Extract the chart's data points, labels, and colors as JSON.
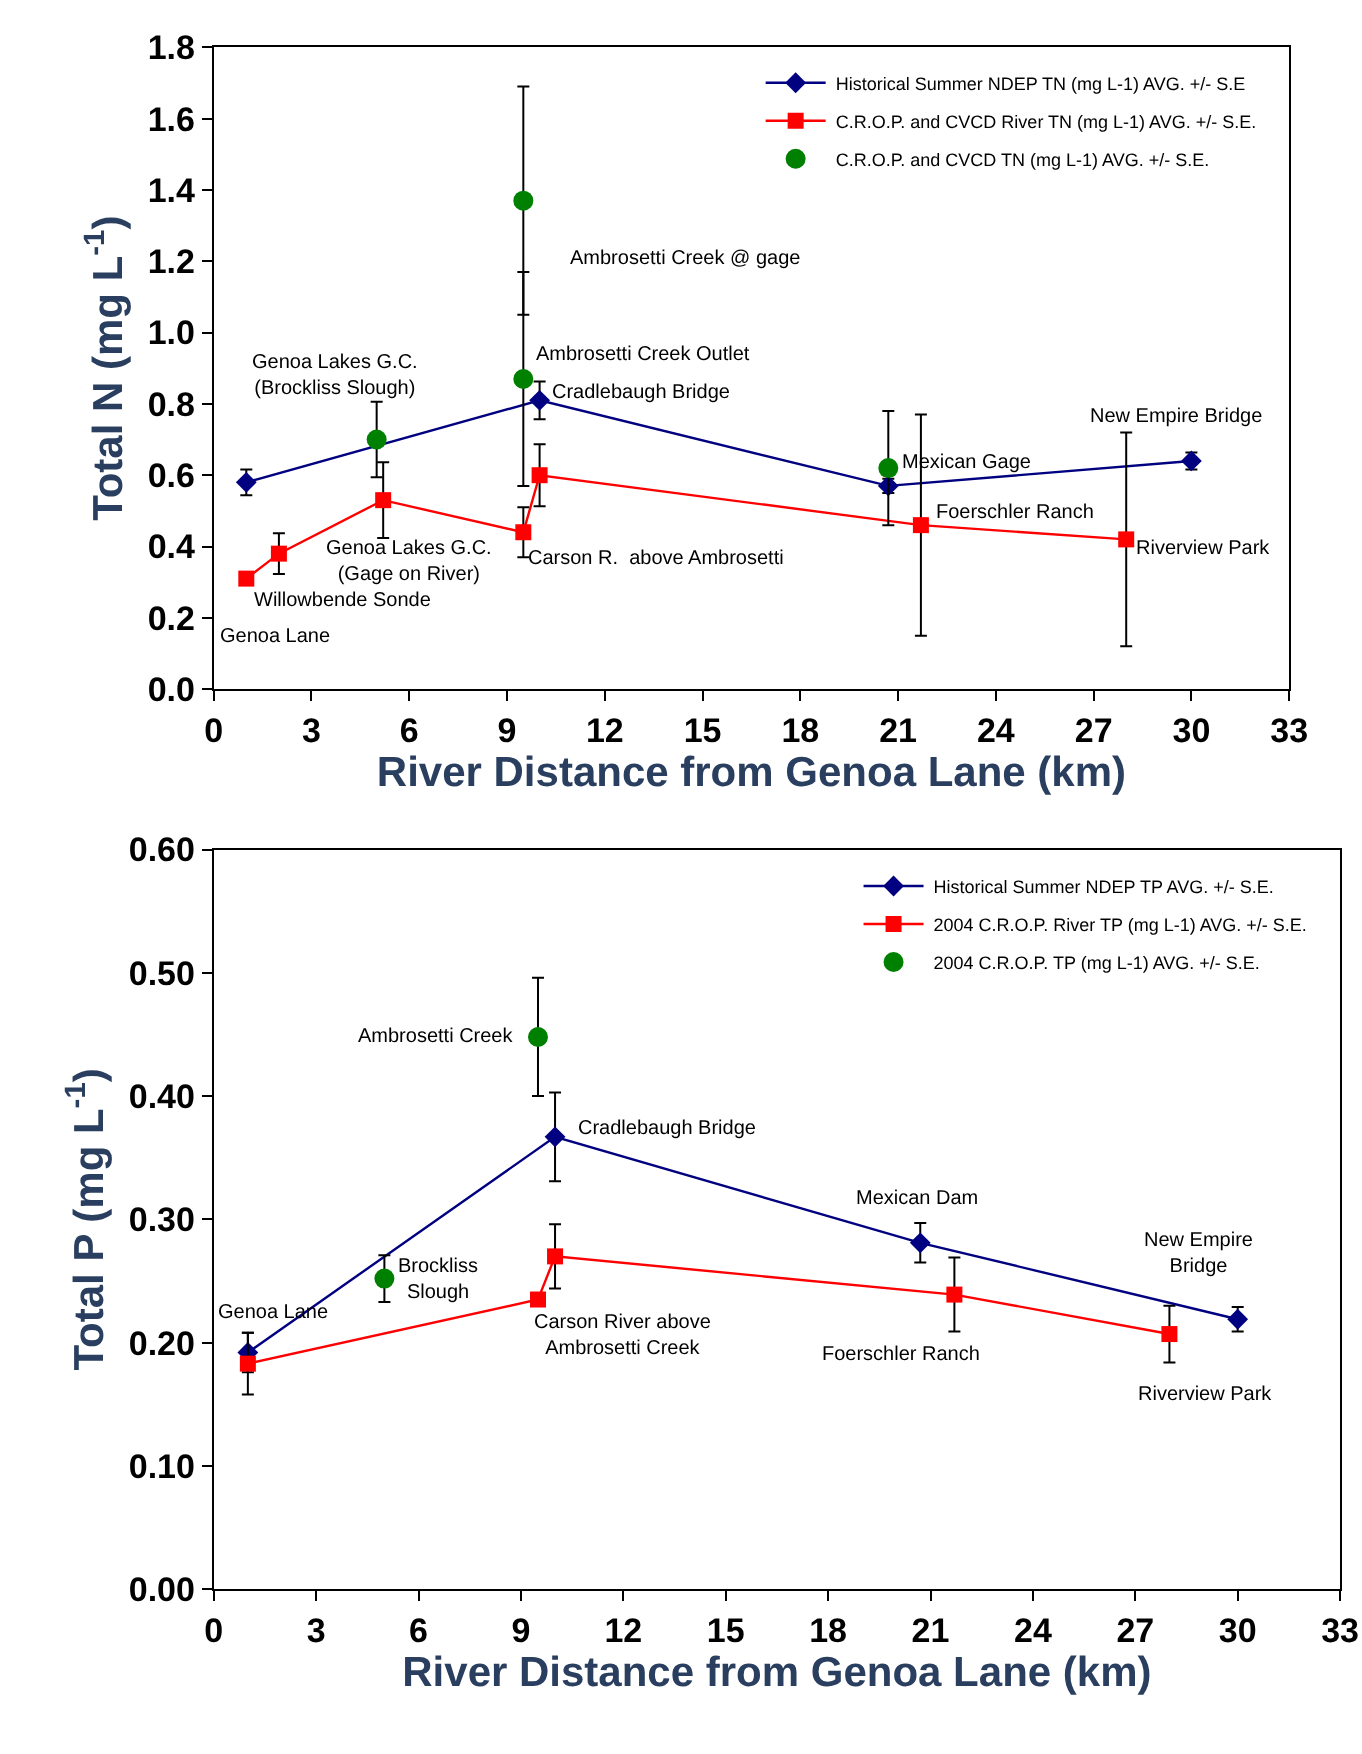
{
  "chart_data": [
    {
      "type": "line",
      "xlabel": "River Distance from Genoa Lane (km)",
      "ylabel": "Total N (mg L$^{-1}$)",
      "xlim": [
        0,
        33
      ],
      "xticks": [
        0,
        3,
        6,
        9,
        12,
        15,
        18,
        21,
        24,
        27,
        30,
        33
      ],
      "ylim": [
        0,
        1.8
      ],
      "yticks": [
        {
          "value": 0,
          "label": "0.0"
        },
        {
          "value": 0.2,
          "label": "0.2"
        },
        {
          "value": 0.4,
          "label": "0.4"
        },
        {
          "value": 0.6,
          "label": "0.6"
        },
        {
          "value": 0.8,
          "label": "0.8"
        },
        {
          "value": 1.0,
          "label": "1.0"
        },
        {
          "value": 1.2,
          "label": "1.2"
        },
        {
          "value": 1.4,
          "label": "1.4"
        },
        {
          "value": 1.6,
          "label": "1.6"
        },
        {
          "value": 1.8,
          "label": "1.8"
        }
      ],
      "legend": "top right",
      "series": [
        {
          "name": "Historical Summer NDEP TN (mg L-1) AVG. +/- S.E",
          "marker": "diamond",
          "color": "#000080",
          "x": [
            1,
            10,
            20.7,
            30
          ],
          "values": [
            0.58,
            0.81,
            0.57,
            0.64
          ],
          "errors": [
            0.036,
            0.053,
            0.02,
            0.024
          ]
        },
        {
          "name": "C.R.O.P. and CVCD River TN (mg L-1) AVG. +/- S.E.",
          "marker": "square",
          "color": "#ff0000",
          "x": [
            1,
            2,
            5.2,
            9.5,
            10,
            21.7,
            28
          ],
          "values": [
            0.31,
            0.38,
            0.53,
            0.44,
            0.6,
            0.46,
            0.42
          ],
          "errors": [
            null,
            0.057,
            0.106,
            0.07,
            0.087,
            0.31,
            0.3
          ]
        },
        {
          "name": "C.R.O.P. and CVCD TN (mg L-1) AVG. +/- S.E.",
          "type": "scatter",
          "marker": "circle",
          "color": "#008000",
          "x": [
            5,
            9.5,
            9.5,
            20.7
          ],
          "values": [
            0.7,
            1.37,
            0.87,
            0.62
          ],
          "errors": [
            0.106,
            0.32,
            0.3,
            0.16
          ]
        }
      ],
      "annotations": [
        {
          "text": "Genoa Lane",
          "x": 1,
          "y": 0.31
        },
        {
          "text": "Willowbende Sonde",
          "x": 2,
          "y": 0.38
        },
        {
          "text": "Genoa Lakes G.C.\n(Gage on River)",
          "x": 5.2,
          "y": 0.53
        },
        {
          "text": "Genoa Lakes G.C.\n(Brockliss Slough)",
          "x": 5,
          "y": 0.7
        },
        "Ambrosetti Creek @ gage",
        {
          "text": "Ambrosetti Creek Outlet",
          "x": 9.5,
          "y": 0.87
        },
        {
          "text": "Cradlebaugh Bridge",
          "x": 10,
          "y": 0.81
        },
        {
          "text": "Carson R.  above Ambrosetti",
          "x": 9.5,
          "y": 0.44
        },
        {
          "text": "Mexican Gage",
          "x": 20.7,
          "y": 0.62
        },
        {
          "text": "Foerschler Ranch",
          "x": 21.7,
          "y": 0.46
        },
        {
          "text": "New Empire Bridge",
          "x": 30,
          "y": 0.64
        },
        {
          "text": "Riverview Park",
          "x": 28,
          "y": 0.42
        }
      ]
    },
    {
      "type": "line",
      "xlabel": "River Distance from Genoa Lane (km)",
      "ylabel": "Total P (mg L$^{-1}$)",
      "xlim": [
        0,
        33
      ],
      "xticks": [
        0,
        3,
        6,
        9,
        12,
        15,
        18,
        21,
        24,
        27,
        30,
        33
      ],
      "ylim": [
        0,
        0.6
      ],
      "yticks": [
        {
          "value": 0,
          "label": "0.00"
        },
        {
          "value": 0.1,
          "label": "0.10"
        },
        {
          "value": 0.2,
          "label": "0.20"
        },
        {
          "value": 0.3,
          "label": "0.30"
        },
        {
          "value": 0.4,
          "label": "0.40"
        },
        {
          "value": 0.5,
          "label": "0.50"
        },
        {
          "value": 0.6,
          "label": "0.60"
        }
      ],
      "legend": "top right",
      "series": [
        {
          "name": "Historical Summer NDEP TP AVG. +/- S.E.",
          "marker": "diamond",
          "color": "#000080",
          "x": [
            1,
            10,
            20.7,
            30
          ],
          "values": [
            0.192,
            0.367,
            0.281,
            0.219
          ],
          "errors": [
            0.016,
            0.036,
            0.016,
            0.01
          ]
        },
        {
          "name": "2004 C.R.O.P. River TP (mg L-1) AVG. +/- S.E.",
          "marker": "square",
          "color": "#ff0000",
          "x": [
            1,
            9.5,
            10,
            21.7,
            28
          ],
          "values": [
            0.183,
            0.235,
            0.27,
            0.239,
            0.207
          ],
          "errors": [
            0.025,
            null,
            0.026,
            0.03,
            0.023
          ]
        },
        {
          "name": "2004 C.R.O.P. TP (mg L-1) AVG. +/- S.E.",
          "type": "scatter",
          "marker": "circle",
          "color": "#008000",
          "x": [
            5,
            9.5
          ],
          "values": [
            0.252,
            0.448
          ],
          "errors": [
            0.019,
            0.048
          ]
        }
      ],
      "annotations": [
        "Genoa Lane",
        {
          "text": "Brockliss\nSlough",
          "x": 5,
          "y": 0.252
        },
        {
          "text": "Ambrosetti Creek",
          "x": 9.5,
          "y": 0.448
        },
        {
          "text": "Cradlebaugh Bridge",
          "x": 10,
          "y": 0.367
        },
        {
          "text": "Carson River above\nAmbrosetti Creek",
          "x": 9.5,
          "y": 0.235
        },
        {
          "text": "Mexican Dam",
          "x": 20.7,
          "y": 0.281
        },
        {
          "text": "Foerschler Ranch",
          "x": 21.7,
          "y": 0.239
        },
        {
          "text": "New Empire\nBridge",
          "x": 30,
          "y": 0.219
        },
        {
          "text": "Riverview Park",
          "x": 28,
          "y": 0.207
        }
      ]
    }
  ]
}
